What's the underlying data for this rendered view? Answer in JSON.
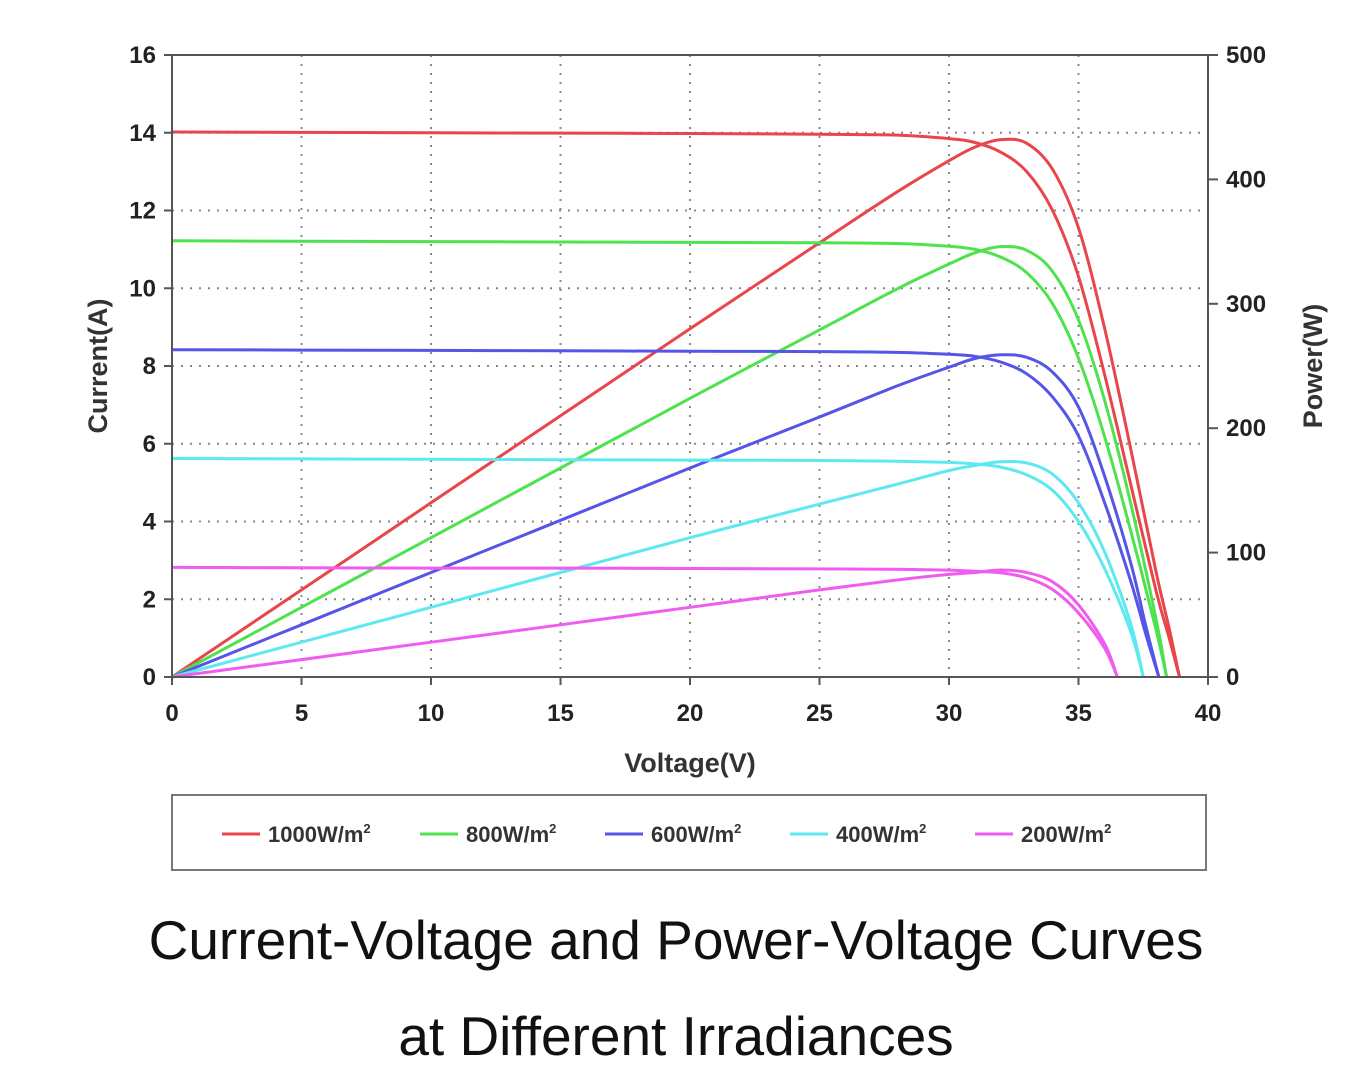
{
  "chart_data": {
    "type": "line",
    "title": "",
    "xlabel": "Voltage(V)",
    "ylabel": "Current(A)",
    "y2label": "Power(W)",
    "xlim": [
      0,
      40
    ],
    "ylim": [
      0,
      16
    ],
    "y2lim": [
      0,
      500
    ],
    "x_ticks": [
      0,
      5,
      10,
      15,
      20,
      25,
      30,
      35,
      40
    ],
    "y_ticks": [
      0,
      2,
      4,
      6,
      8,
      10,
      12,
      14,
      16
    ],
    "y2_ticks": [
      0,
      100,
      200,
      300,
      400,
      500
    ],
    "grid": true,
    "legend_position": "bottom",
    "series": [
      {
        "name": "1000W/m",
        "superscript": "2",
        "color": "#e8464a",
        "iv": [
          [
            0,
            14.02
          ],
          [
            5,
            14.01
          ],
          [
            10,
            14.0
          ],
          [
            15,
            13.99
          ],
          [
            20,
            13.98
          ],
          [
            25,
            13.96
          ],
          [
            28,
            13.94
          ],
          [
            30,
            13.85
          ],
          [
            31,
            13.75
          ],
          [
            32,
            13.5
          ],
          [
            33,
            13.0
          ],
          [
            34,
            12.0
          ],
          [
            35,
            10.3
          ],
          [
            36,
            7.8
          ],
          [
            37,
            5.0
          ],
          [
            38,
            2.2
          ],
          [
            38.5,
            1.0
          ],
          [
            38.9,
            0
          ]
        ],
        "pv": [
          [
            0,
            0
          ],
          [
            5,
            70
          ],
          [
            10,
            140
          ],
          [
            15,
            210
          ],
          [
            20,
            280
          ],
          [
            25,
            349
          ],
          [
            28,
            390
          ],
          [
            30,
            415
          ],
          [
            31,
            426
          ],
          [
            32,
            432
          ],
          [
            33,
            429
          ],
          [
            34,
            408
          ],
          [
            35,
            361
          ],
          [
            36,
            281
          ],
          [
            37,
            185
          ],
          [
            38,
            84
          ],
          [
            38.5,
            39
          ],
          [
            38.9,
            0
          ]
        ]
      },
      {
        "name": "800W/m",
        "superscript": "2",
        "color": "#4ee24e",
        "iv": [
          [
            0,
            11.22
          ],
          [
            5,
            11.21
          ],
          [
            10,
            11.2
          ],
          [
            15,
            11.19
          ],
          [
            20,
            11.18
          ],
          [
            25,
            11.17
          ],
          [
            28,
            11.15
          ],
          [
            30,
            11.08
          ],
          [
            31,
            11.0
          ],
          [
            32,
            10.8
          ],
          [
            33,
            10.4
          ],
          [
            34,
            9.6
          ],
          [
            35,
            8.2
          ],
          [
            36,
            6.2
          ],
          [
            37,
            3.8
          ],
          [
            38,
            1.2
          ],
          [
            38.4,
            0
          ]
        ],
        "pv": [
          [
            0,
            0
          ],
          [
            5,
            56
          ],
          [
            10,
            112
          ],
          [
            15,
            168
          ],
          [
            20,
            224
          ],
          [
            25,
            279
          ],
          [
            28,
            312
          ],
          [
            30,
            332
          ],
          [
            31,
            341
          ],
          [
            32,
            346
          ],
          [
            33,
            343
          ],
          [
            34,
            326
          ],
          [
            35,
            287
          ],
          [
            36,
            223
          ],
          [
            37,
            141
          ],
          [
            38,
            46
          ],
          [
            38.4,
            0
          ]
        ]
      },
      {
        "name": "600W/m",
        "superscript": "2",
        "color": "#5555e8",
        "iv": [
          [
            0,
            8.42
          ],
          [
            5,
            8.41
          ],
          [
            10,
            8.4
          ],
          [
            15,
            8.39
          ],
          [
            20,
            8.38
          ],
          [
            25,
            8.37
          ],
          [
            28,
            8.35
          ],
          [
            30,
            8.3
          ],
          [
            31,
            8.25
          ],
          [
            32,
            8.1
          ],
          [
            33,
            7.8
          ],
          [
            34,
            7.2
          ],
          [
            35,
            6.2
          ],
          [
            36,
            4.5
          ],
          [
            37,
            2.5
          ],
          [
            37.6,
            1.1
          ],
          [
            38.1,
            0
          ]
        ],
        "pv": [
          [
            0,
            0
          ],
          [
            5,
            42
          ],
          [
            10,
            84
          ],
          [
            15,
            126
          ],
          [
            20,
            168
          ],
          [
            25,
            209
          ],
          [
            28,
            234
          ],
          [
            30,
            249
          ],
          [
            31,
            256
          ],
          [
            32,
            259
          ],
          [
            33,
            257
          ],
          [
            34,
            245
          ],
          [
            35,
            217
          ],
          [
            36,
            162
          ],
          [
            37,
            93
          ],
          [
            37.6,
            41
          ],
          [
            38.1,
            0
          ]
        ]
      },
      {
        "name": "400W/m",
        "superscript": "2",
        "color": "#5ee8f0",
        "iv": [
          [
            0,
            5.62
          ],
          [
            5,
            5.61
          ],
          [
            10,
            5.6
          ],
          [
            15,
            5.59
          ],
          [
            20,
            5.58
          ],
          [
            25,
            5.57
          ],
          [
            28,
            5.55
          ],
          [
            30,
            5.52
          ],
          [
            31,
            5.48
          ],
          [
            32,
            5.4
          ],
          [
            33,
            5.2
          ],
          [
            34,
            4.8
          ],
          [
            35,
            4.0
          ],
          [
            36,
            2.8
          ],
          [
            37,
            1.2
          ],
          [
            37.5,
            0
          ]
        ],
        "pv": [
          [
            0,
            0
          ],
          [
            5,
            28
          ],
          [
            10,
            56
          ],
          [
            15,
            84
          ],
          [
            20,
            112
          ],
          [
            25,
            139
          ],
          [
            28,
            155
          ],
          [
            30,
            166
          ],
          [
            31,
            170
          ],
          [
            32,
            173
          ],
          [
            33,
            172
          ],
          [
            34,
            163
          ],
          [
            35,
            140
          ],
          [
            36,
            101
          ],
          [
            37,
            44
          ],
          [
            37.5,
            0
          ]
        ]
      },
      {
        "name": "200W/m",
        "superscript": "2",
        "color": "#f05cf0",
        "iv": [
          [
            0,
            2.82
          ],
          [
            5,
            2.81
          ],
          [
            10,
            2.8
          ],
          [
            15,
            2.8
          ],
          [
            20,
            2.79
          ],
          [
            25,
            2.78
          ],
          [
            28,
            2.77
          ],
          [
            30,
            2.75
          ],
          [
            31,
            2.72
          ],
          [
            32,
            2.68
          ],
          [
            33,
            2.55
          ],
          [
            34,
            2.25
          ],
          [
            35,
            1.65
          ],
          [
            36,
            0.75
          ],
          [
            36.5,
            0
          ]
        ],
        "pv": [
          [
            0,
            0
          ],
          [
            5,
            14
          ],
          [
            10,
            28
          ],
          [
            15,
            42
          ],
          [
            20,
            56
          ],
          [
            25,
            70
          ],
          [
            28,
            78
          ],
          [
            30,
            82.5
          ],
          [
            31,
            84
          ],
          [
            32,
            86
          ],
          [
            33,
            84
          ],
          [
            34,
            76.5
          ],
          [
            35,
            58
          ],
          [
            36,
            27
          ],
          [
            36.5,
            0
          ]
        ]
      }
    ]
  },
  "caption": {
    "line1": "Current-Voltage and Power-Voltage Curves",
    "line2": "at Different Irradiances"
  }
}
